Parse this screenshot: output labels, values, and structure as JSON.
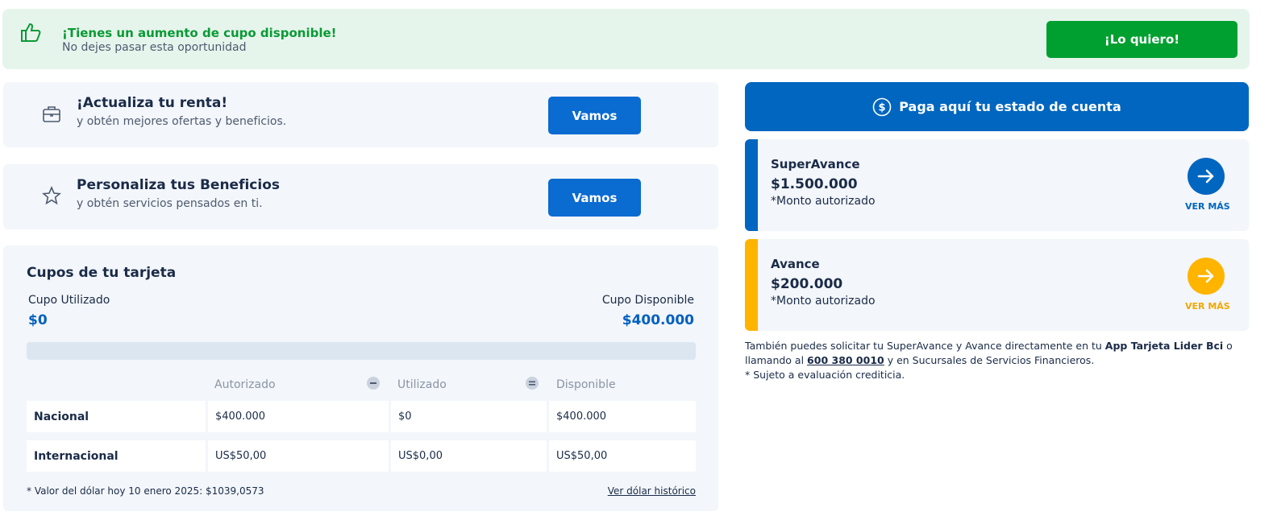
{
  "banner": {
    "title": "¡Tienes un aumento de cupo disponible!",
    "subtitle": "No dejes pasar esta oportunidad",
    "button": "¡Lo quiero!"
  },
  "promos": [
    {
      "title": "¡Actualiza tu renta!",
      "subtitle": "y obtén mejores ofertas y beneficios.",
      "button": "Vamos"
    },
    {
      "title": "Personaliza tus Beneficios",
      "subtitle": "y obtén servicios pensados en ti.",
      "button": "Vamos"
    }
  ],
  "limits": {
    "title": "Cupos de tu tarjeta",
    "used_label": "Cupo Utilizado",
    "used_value": "$0",
    "available_label": "Cupo Disponible",
    "available_value": "$400.000",
    "columns": [
      "Autorizado",
      "Utilizado",
      "Disponible"
    ],
    "rows": [
      [
        "Nacional",
        "$400.000",
        "$0",
        "$400.000"
      ],
      [
        "Internacional",
        "US$50,00",
        "US$0,00",
        "US$50,00"
      ]
    ],
    "footnote": "* Valor del dólar hoy 10 enero 2025: $1039,0573",
    "link": "Ver dólar histórico"
  },
  "pay_button": "Paga aquí tu estado de cuenta",
  "offers": [
    {
      "title": "SuperAvance",
      "amount": "$1.500.000",
      "note": "*Monto autorizado",
      "link": "VER MÁS"
    },
    {
      "title": "Avance",
      "amount": "$200.000",
      "note": "*Monto autorizado",
      "link": "VER MÁS"
    }
  ],
  "info": {
    "text_1": "También puedes solicitar tu SuperAvance y Avance directamente en tu",
    "app": "App Tarjeta Lider Bci",
    "text_2": "o llamando al",
    "phone": "600 380 0010",
    "text_3": "y en Sucursales de Servicios Financieros.",
    "note": "* Sujeto a evaluación crediticia."
  }
}
